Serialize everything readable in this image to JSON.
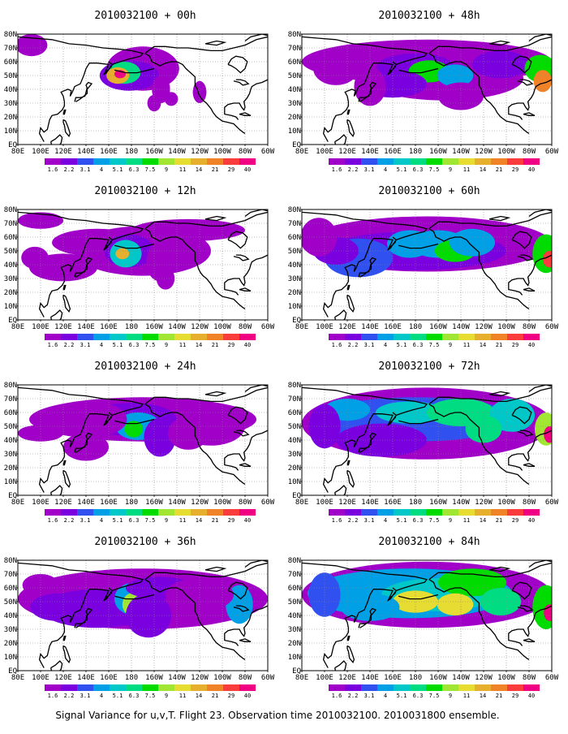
{
  "panels": [
    {
      "title": "2010032100 + 00h",
      "lead_hours": 0
    },
    {
      "title": "2010032100 + 48h",
      "lead_hours": 48
    },
    {
      "title": "2010032100 + 12h",
      "lead_hours": 12
    },
    {
      "title": "2010032100 + 60h",
      "lead_hours": 60
    },
    {
      "title": "2010032100 + 24h",
      "lead_hours": 24
    },
    {
      "title": "2010032100 + 72h",
      "lead_hours": 72
    },
    {
      "title": "2010032100 + 36h",
      "lead_hours": 36
    },
    {
      "title": "2010032100 + 84h",
      "lead_hours": 84
    }
  ],
  "lat_labels": [
    "80N",
    "70N",
    "60N",
    "50N",
    "40N",
    "30N",
    "20N",
    "10N",
    "EQ"
  ],
  "lon_labels": [
    "80E",
    "100E",
    "120E",
    "140E",
    "160E",
    "180",
    "160W",
    "140W",
    "120W",
    "100W",
    "80W",
    "60W"
  ],
  "colorbar": {
    "labels": [
      "1.6",
      "2.2",
      "3.1",
      "4",
      "5.1",
      "6.3",
      "7.5",
      "9",
      "11",
      "14",
      "21",
      "29",
      "40"
    ],
    "colors": [
      "#a000c8",
      "#7a00e0",
      "#3050f0",
      "#00a0e6",
      "#00c8c8",
      "#00dc82",
      "#00dc00",
      "#a0e632",
      "#e6dc32",
      "#e6af2d",
      "#f08228",
      "#fa3c3c",
      "#f00082"
    ]
  },
  "caption": "Signal Variance for u,v,T. Flight 23. Observation time 2010032100. 2010031800 ensemble."
}
